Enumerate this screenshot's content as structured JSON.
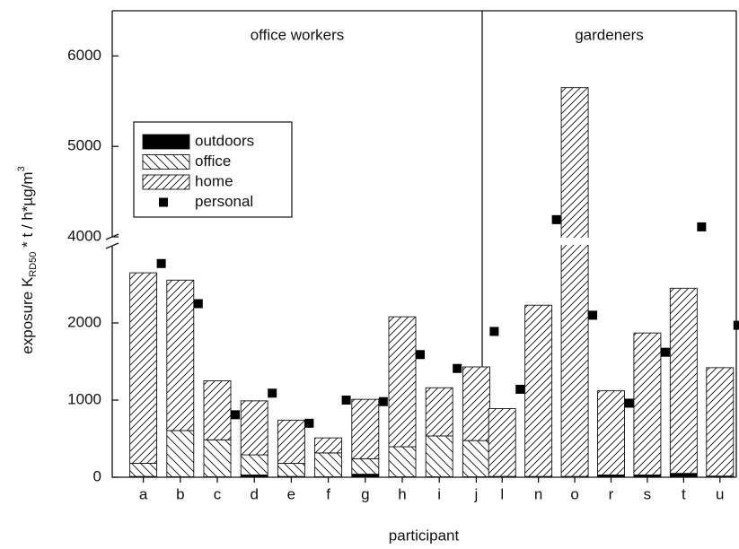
{
  "chart_data": {
    "type": "bar",
    "stacked": true,
    "x_label": "participant",
    "y_label": {
      "text": "exposure K",
      "sub": "RD50",
      "rest": " * t / h*µg/m",
      "sup": "3"
    },
    "groups": [
      {
        "label": "office workers",
        "first": "a",
        "last": "j"
      },
      {
        "label": "gardeners",
        "first": "l",
        "last": "u"
      }
    ],
    "categories": [
      "a",
      "b",
      "c",
      "d",
      "e",
      "f",
      "g",
      "h",
      "i",
      "j",
      "l",
      "n",
      "o",
      "r",
      "s",
      "t",
      "u"
    ],
    "series": [
      {
        "name": "outdoors",
        "color": "#000000",
        "pattern": "solid",
        "values": [
          10,
          5,
          5,
          30,
          10,
          5,
          40,
          5,
          5,
          5,
          10,
          10,
          10,
          30,
          30,
          50,
          15
        ]
      },
      {
        "name": "office",
        "color": "#000000",
        "pattern": "backslash",
        "values": [
          170,
          600,
          480,
          260,
          170,
          310,
          200,
          390,
          530,
          470,
          0,
          0,
          0,
          0,
          0,
          0,
          0
        ]
      },
      {
        "name": "home",
        "color": "#000000",
        "pattern": "slash",
        "values": [
          2470,
          1950,
          765,
          700,
          560,
          195,
          770,
          1685,
          625,
          955,
          880,
          2220,
          5640,
          1090,
          1840,
          2400,
          1405
        ]
      },
      {
        "name": "personal",
        "color": "#000000",
        "type": "scatter",
        "marker": "square",
        "values": [
          2770,
          2250,
          810,
          1090,
          700,
          1000,
          980,
          1590,
          1410,
          1890,
          1140,
          4190,
          2100,
          960,
          1620,
          4110,
          1970
        ]
      }
    ],
    "ylim": [
      0,
      6500
    ],
    "y_break": [
      3000,
      4000
    ],
    "yticks": [
      0,
      1000,
      2000,
      4000,
      5000,
      6000
    ],
    "legend": "upper left",
    "grid": false
  }
}
